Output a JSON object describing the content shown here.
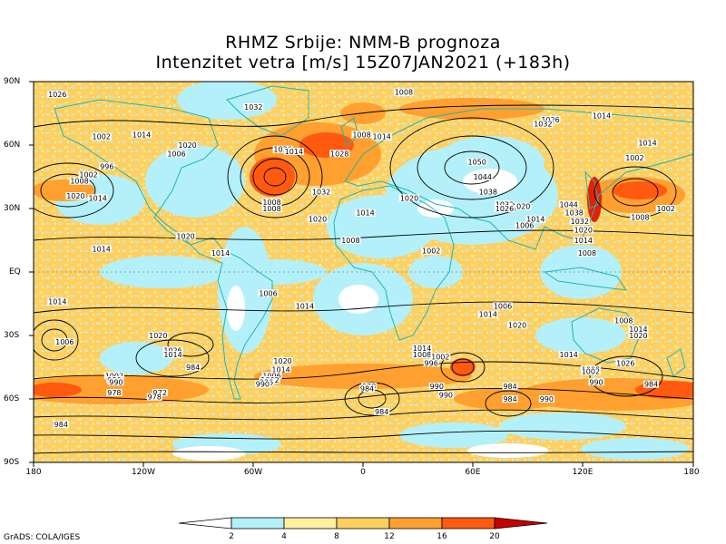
{
  "title": {
    "line1": "RHMZ Srbije: NMM-B prognoza",
    "line2": "Intenzitet vetra [m/s] 15Z07JAN2021 (+183h)"
  },
  "lat_labels": [
    "90N",
    "60N",
    "30N",
    "EQ",
    "30S",
    "60S",
    "90S"
  ],
  "lon_labels": [
    "180",
    "120W",
    "60W",
    "0",
    "60E",
    "120E",
    "180"
  ],
  "colorbar": {
    "labels": [
      "2",
      "4",
      "8",
      "12",
      "16",
      "20"
    ],
    "colors": [
      "#ffffff",
      "#b4f0fa",
      "#fff0a0",
      "#ffd060",
      "#ffa030",
      "#ff5a10",
      "#e62000",
      "#c80000"
    ]
  },
  "isobars": [
    {
      "label": "1026",
      "lon": -167,
      "lat": 84
    },
    {
      "label": "1008",
      "lon": 22,
      "lat": 85
    },
    {
      "label": "1032",
      "lon": -60,
      "lat": 78
    },
    {
      "label": "1002",
      "lon": -143,
      "lat": 64
    },
    {
      "label": "1014",
      "lon": -121,
      "lat": 65
    },
    {
      "label": "1020",
      "lon": -96,
      "lat": 60
    },
    {
      "label": "1008",
      "lon": -1,
      "lat": 65
    },
    {
      "label": "1014",
      "lon": 10,
      "lat": 64
    },
    {
      "label": "1026",
      "lon": 102,
      "lat": 72
    },
    {
      "label": "1032",
      "lon": 98,
      "lat": 70
    },
    {
      "label": "1014",
      "lon": 130,
      "lat": 74
    },
    {
      "label": "1014",
      "lon": 155,
      "lat": 61
    },
    {
      "label": "1026",
      "lon": -44,
      "lat": 58
    },
    {
      "label": "1014",
      "lon": -38,
      "lat": 57
    },
    {
      "label": "1028",
      "lon": -13,
      "lat": 56
    },
    {
      "label": "1006",
      "lon": -102,
      "lat": 56
    },
    {
      "label": "1050",
      "lon": 62,
      "lat": 52
    },
    {
      "label": "1002",
      "lon": 148,
      "lat": 54
    },
    {
      "label": "996",
      "lon": -140,
      "lat": 50
    },
    {
      "label": "1002",
      "lon": -150,
      "lat": 46
    },
    {
      "label": "1008",
      "lon": -155,
      "lat": 43
    },
    {
      "label": "1044",
      "lon": 65,
      "lat": 45
    },
    {
      "label": "1020",
      "lon": -157,
      "lat": 36
    },
    {
      "label": "1014",
      "lon": -145,
      "lat": 35
    },
    {
      "label": "1032",
      "lon": -23,
      "lat": 38
    },
    {
      "label": "1020",
      "lon": 25,
      "lat": 35
    },
    {
      "label": "1038",
      "lon": 68,
      "lat": 38
    },
    {
      "label": "1008",
      "lon": -50,
      "lat": 33
    },
    {
      "label": "1008",
      "lon": -50,
      "lat": 30
    },
    {
      "label": "1032",
      "lon": 77,
      "lat": 32
    },
    {
      "label": "1020",
      "lon": 86,
      "lat": 31
    },
    {
      "label": "1026",
      "lon": 77,
      "lat": 30
    },
    {
      "label": "1044",
      "lon": 112,
      "lat": 32
    },
    {
      "label": "1038",
      "lon": 115,
      "lat": 28
    },
    {
      "label": "1002",
      "lon": 165,
      "lat": 30
    },
    {
      "label": "1008",
      "lon": 151,
      "lat": 26
    },
    {
      "label": "1014",
      "lon": 1,
      "lat": 28
    },
    {
      "label": "1020",
      "lon": -25,
      "lat": 25
    },
    {
      "label": "1014",
      "lon": 94,
      "lat": 25
    },
    {
      "label": "1032",
      "lon": 118,
      "lat": 24
    },
    {
      "label": "1006",
      "lon": 88,
      "lat": 22
    },
    {
      "label": "1020",
      "lon": 120,
      "lat": 20
    },
    {
      "label": "1020",
      "lon": -97,
      "lat": 17
    },
    {
      "label": "1014",
      "lon": 120,
      "lat": 15
    },
    {
      "label": "1008",
      "lon": -7,
      "lat": 15
    },
    {
      "label": "1014",
      "lon": -143,
      "lat": 11
    },
    {
      "label": "1014",
      "lon": -78,
      "lat": 9
    },
    {
      "label": "1002",
      "lon": 37,
      "lat": 10
    },
    {
      "label": "1008",
      "lon": 122,
      "lat": 9
    },
    {
      "label": "1006",
      "lon": -52,
      "lat": -10
    },
    {
      "label": "1014",
      "lon": -167,
      "lat": -14
    },
    {
      "label": "1014",
      "lon": -32,
      "lat": -16
    },
    {
      "label": "1006",
      "lon": 76,
      "lat": -16
    },
    {
      "label": "1014",
      "lon": 68,
      "lat": -20
    },
    {
      "label": "1008",
      "lon": 142,
      "lat": -23
    },
    {
      "label": "1020",
      "lon": 84,
      "lat": -25
    },
    {
      "label": "1014",
      "lon": 150,
      "lat": -27
    },
    {
      "label": "1020",
      "lon": -112,
      "lat": -30
    },
    {
      "label": "1020",
      "lon": 150,
      "lat": -30
    },
    {
      "label": "1006",
      "lon": -163,
      "lat": -33
    },
    {
      "label": "1014",
      "lon": 32,
      "lat": -36
    },
    {
      "label": "1026",
      "lon": -104,
      "lat": -37
    },
    {
      "label": "1014",
      "lon": -104,
      "lat": -39
    },
    {
      "label": "1008",
      "lon": 32,
      "lat": -39
    },
    {
      "label": "1002",
      "lon": 42,
      "lat": -40
    },
    {
      "label": "1014",
      "lon": 112,
      "lat": -39
    },
    {
      "label": "1020",
      "lon": -44,
      "lat": -42
    },
    {
      "label": "996",
      "lon": 37,
      "lat": -43
    },
    {
      "label": "1026",
      "lon": 143,
      "lat": -43
    },
    {
      "label": "984",
      "lon": -93,
      "lat": -45
    },
    {
      "label": "1014",
      "lon": -45,
      "lat": -46
    },
    {
      "label": "1008",
      "lon": 124,
      "lat": -46
    },
    {
      "label": "1002",
      "lon": 124,
      "lat": -47
    },
    {
      "label": "1002",
      "lon": -136,
      "lat": -49
    },
    {
      "label": "1006",
      "lon": -50,
      "lat": -49
    },
    {
      "label": "996",
      "lon": -136,
      "lat": -51
    },
    {
      "label": "1002",
      "lon": -51,
      "lat": -51
    },
    {
      "label": "990",
      "lon": -135,
      "lat": -52
    },
    {
      "label": "996",
      "lon": -53,
      "lat": -52
    },
    {
      "label": "990",
      "lon": 127,
      "lat": -52
    },
    {
      "label": "984",
      "lon": 157,
      "lat": -53
    },
    {
      "label": "990",
      "lon": -55,
      "lat": -53
    },
    {
      "label": "978",
      "lon": 3,
      "lat": -54
    },
    {
      "label": "984",
      "lon": 80,
      "lat": -54
    },
    {
      "label": "990",
      "lon": 40,
      "lat": -54
    },
    {
      "label": "984",
      "lon": 2,
      "lat": -55
    },
    {
      "label": "978",
      "lon": -136,
      "lat": -57
    },
    {
      "label": "972",
      "lon": -111,
      "lat": -57
    },
    {
      "label": "978",
      "lon": -114,
      "lat": -59
    },
    {
      "label": "990",
      "lon": 45,
      "lat": -58
    },
    {
      "label": "984",
      "lon": 80,
      "lat": -60
    },
    {
      "label": "990",
      "lon": 100,
      "lat": -60
    },
    {
      "label": "984",
      "lon": 10,
      "lat": -66
    },
    {
      "label": "984",
      "lon": -165,
      "lat": -72
    }
  ]
}
